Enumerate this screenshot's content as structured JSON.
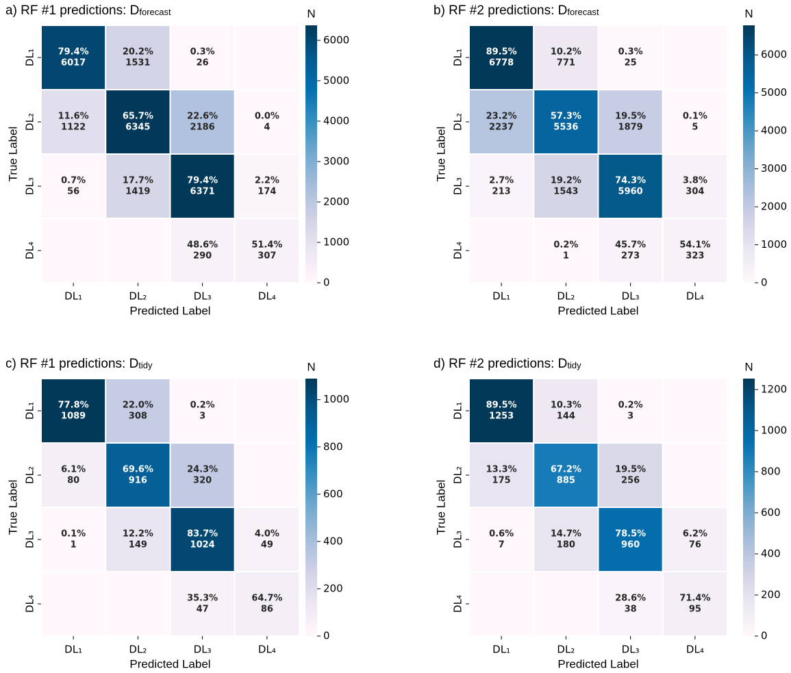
{
  "chart_data": [
    {
      "type": "heatmap",
      "title": "a)  RF #1 predictions: D",
      "title_sub": "forecast",
      "xlabel": "Predicted Label",
      "ylabel": "True Label",
      "colorbar_label": "N",
      "xcategories": [
        "DL₁",
        "DL₂",
        "DL₃",
        "DL₄"
      ],
      "ycategories": [
        "DL₁",
        "DL₂",
        "DL₃",
        "DL₄"
      ],
      "values": [
        [
          6017,
          1531,
          26,
          0
        ],
        [
          1122,
          6345,
          2186,
          4
        ],
        [
          56,
          1419,
          6371,
          174
        ],
        [
          0,
          0,
          290,
          307
        ]
      ],
      "percent_labels": [
        [
          "79.4%",
          "20.2%",
          "0.3%",
          null
        ],
        [
          "11.6%",
          "65.7%",
          "22.6%",
          "0.0%"
        ],
        [
          "0.7%",
          "17.7%",
          "79.4%",
          "2.2%"
        ],
        [
          null,
          null,
          "48.6%",
          "51.4%"
        ]
      ],
      "zlim": [
        0,
        6371
      ],
      "zticks": [
        0,
        1000,
        2000,
        3000,
        4000,
        5000,
        6000
      ],
      "colormap": [
        "#fff7fb",
        "#ece7f2",
        "#d0d1e6",
        "#a6bddb",
        "#74a9cf",
        "#3690c0",
        "#0570b0",
        "#045a8d",
        "#023858"
      ]
    },
    {
      "type": "heatmap",
      "title": "b)  RF #2 predictions: D",
      "title_sub": "forecast",
      "xlabel": "Predicted Label",
      "ylabel": "True Label",
      "colorbar_label": "N",
      "xcategories": [
        "DL₁",
        "DL₂",
        "DL₃",
        "DL₄"
      ],
      "ycategories": [
        "DL₁",
        "DL₂",
        "DL₃",
        "DL₄"
      ],
      "values": [
        [
          6778,
          771,
          25,
          0
        ],
        [
          2237,
          5536,
          1879,
          5
        ],
        [
          213,
          1543,
          5960,
          304
        ],
        [
          0,
          1,
          273,
          323
        ]
      ],
      "percent_labels": [
        [
          "89.5%",
          "10.2%",
          "0.3%",
          null
        ],
        [
          "23.2%",
          "57.3%",
          "19.5%",
          "0.1%"
        ],
        [
          "2.7%",
          "19.2%",
          "74.3%",
          "3.8%"
        ],
        [
          null,
          "0.2%",
          "45.7%",
          "54.1%"
        ]
      ],
      "zlim": [
        0,
        6778
      ],
      "zticks": [
        0,
        1000,
        2000,
        3000,
        4000,
        5000,
        6000
      ],
      "colormap": [
        "#fff7fb",
        "#ece7f2",
        "#d0d1e6",
        "#a6bddb",
        "#74a9cf",
        "#3690c0",
        "#0570b0",
        "#045a8d",
        "#023858"
      ]
    },
    {
      "type": "heatmap",
      "title": "c)  RF #1 predictions: D",
      "title_sub": "tidy",
      "xlabel": "Predicted Label",
      "ylabel": "True Label",
      "colorbar_label": "N",
      "xcategories": [
        "DL₁",
        "DL₂",
        "DL₃",
        "DL₄"
      ],
      "ycategories": [
        "DL₁",
        "DL₂",
        "DL₃",
        "DL₄"
      ],
      "values": [
        [
          1089,
          308,
          3,
          0
        ],
        [
          80,
          916,
          320,
          0
        ],
        [
          1,
          149,
          1024,
          49
        ],
        [
          0,
          0,
          47,
          86
        ]
      ],
      "percent_labels": [
        [
          "77.8%",
          "22.0%",
          "0.2%",
          null
        ],
        [
          "6.1%",
          "69.6%",
          "24.3%",
          null
        ],
        [
          "0.1%",
          "12.2%",
          "83.7%",
          "4.0%"
        ],
        [
          null,
          null,
          "35.3%",
          "64.7%"
        ]
      ],
      "zlim": [
        0,
        1089
      ],
      "zticks": [
        0,
        200,
        400,
        600,
        800,
        1000
      ],
      "colormap": [
        "#fff7fb",
        "#ece7f2",
        "#d0d1e6",
        "#a6bddb",
        "#74a9cf",
        "#3690c0",
        "#0570b0",
        "#045a8d",
        "#023858"
      ]
    },
    {
      "type": "heatmap",
      "title": "d)  RF #2 predictions: D",
      "title_sub": "tidy",
      "xlabel": "Predicted Label",
      "ylabel": "True Label",
      "colorbar_label": "N",
      "xcategories": [
        "DL₁",
        "DL₂",
        "DL₃",
        "DL₄"
      ],
      "ycategories": [
        "DL₁",
        "DL₂",
        "DL₃",
        "DL₄"
      ],
      "values": [
        [
          1253,
          144,
          3,
          0
        ],
        [
          175,
          885,
          256,
          0
        ],
        [
          7,
          180,
          960,
          76
        ],
        [
          0,
          0,
          38,
          95
        ]
      ],
      "percent_labels": [
        [
          "89.5%",
          "10.3%",
          "0.2%",
          null
        ],
        [
          "13.3%",
          "67.2%",
          "19.5%",
          null
        ],
        [
          "0.6%",
          "14.7%",
          "78.5%",
          "6.2%"
        ],
        [
          null,
          null,
          "28.6%",
          "71.4%"
        ]
      ],
      "zlim": [
        0,
        1253
      ],
      "zticks": [
        0,
        200,
        400,
        600,
        800,
        1000,
        1200
      ],
      "colormap": [
        "#fff7fb",
        "#ece7f2",
        "#d0d1e6",
        "#a6bddb",
        "#74a9cf",
        "#3690c0",
        "#0570b0",
        "#045a8d",
        "#023858"
      ]
    }
  ]
}
